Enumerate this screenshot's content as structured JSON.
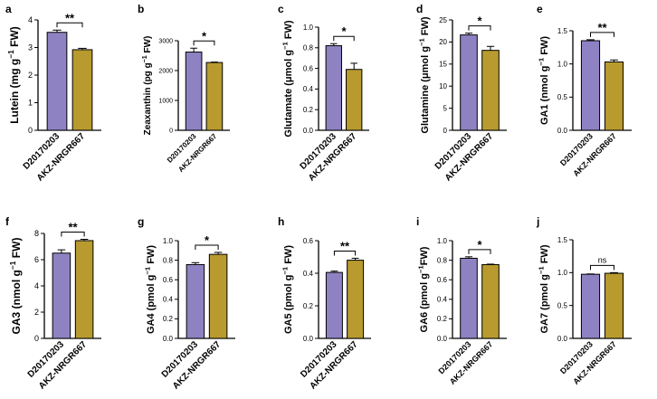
{
  "colors": {
    "series1": "#8e82c3",
    "series2": "#b89a2f",
    "axis": "#000000"
  },
  "chart_data": [
    {
      "panel": "a",
      "type": "bar",
      "categories": [
        "D20170203",
        "AKZ-NRGR667"
      ],
      "values": [
        3.55,
        2.92
      ],
      "errors": [
        0.08,
        0.05
      ],
      "ylabel_parts": [
        "Lutein (mg g",
        "−1",
        " FW)"
      ],
      "ylim": [
        0,
        4
      ],
      "yticks": [
        0,
        1,
        2,
        3,
        4
      ],
      "yticklabels": [
        "0",
        "1",
        "2",
        "3",
        "4"
      ],
      "significance": "**"
    },
    {
      "panel": "b",
      "type": "bar",
      "categories": [
        "D20170203",
        "AKZ-NRGR667"
      ],
      "values": [
        2620,
        2270
      ],
      "errors": [
        130,
        15
      ],
      "ylabel_parts": [
        "Zeaxanthin (pg g",
        "−1",
        " FW)"
      ],
      "ylim": [
        0,
        3000
      ],
      "yticks": [
        0,
        1000,
        2000,
        3000
      ],
      "yticklabels": [
        "0",
        "1000",
        "2000",
        "3000"
      ],
      "significance": "*"
    },
    {
      "panel": "c",
      "type": "bar",
      "categories": [
        "D20170203",
        "AKZ-NRGR667"
      ],
      "values": [
        0.82,
        0.59
      ],
      "errors": [
        0.02,
        0.06
      ],
      "ylabel_parts": [
        "Glutamate (μmol g",
        "−1",
        " FW)"
      ],
      "ylim": [
        0,
        1.0
      ],
      "yticks": [
        0,
        0.2,
        0.4,
        0.6,
        0.8,
        1.0
      ],
      "yticklabels": [
        "0.0",
        "0.2",
        "0.4",
        "0.6",
        "0.8",
        "1.0"
      ],
      "significance": "*"
    },
    {
      "panel": "d",
      "type": "bar",
      "categories": [
        "D20170203",
        "AKZ-NRGR667"
      ],
      "values": [
        21.6,
        18.1
      ],
      "errors": [
        0.4,
        0.9
      ],
      "ylabel_parts": [
        "Glutamine (μmol g",
        "−1",
        " FW)"
      ],
      "ylim": [
        0,
        25
      ],
      "yticks": [
        0,
        5,
        10,
        15,
        20,
        25
      ],
      "yticklabels": [
        "0",
        "5",
        "10",
        "15",
        "20",
        "25"
      ],
      "significance": "*"
    },
    {
      "panel": "e",
      "type": "bar",
      "categories": [
        "D20170203",
        "AKZ-NRGR667"
      ],
      "values": [
        1.35,
        1.03
      ],
      "errors": [
        0.015,
        0.03
      ],
      "ylabel_parts": [
        "GA1 (nmol g",
        "−1",
        " FW)"
      ],
      "ylim": [
        0,
        1.5
      ],
      "yticks": [
        0,
        0.5,
        1.0,
        1.5
      ],
      "yticklabels": [
        "0.0",
        "0.5",
        "1.0",
        "1.5"
      ],
      "significance": "**"
    },
    {
      "panel": "f",
      "type": "bar",
      "categories": [
        "D20170203",
        "AKZ-NRGR667"
      ],
      "values": [
        6.5,
        7.45
      ],
      "errors": [
        0.25,
        0.1
      ],
      "ylabel_parts": [
        "GA3 (nmol g",
        "−1",
        " FW)"
      ],
      "ylim": [
        0,
        8
      ],
      "yticks": [
        0,
        2,
        4,
        6,
        8
      ],
      "yticklabels": [
        "0",
        "2",
        "4",
        "6",
        "8"
      ],
      "significance": "**"
    },
    {
      "panel": "g",
      "type": "bar",
      "categories": [
        "D20170203",
        "AKZ-NRGR667"
      ],
      "values": [
        0.755,
        0.86
      ],
      "errors": [
        0.02,
        0.02
      ],
      "ylabel_parts": [
        "GA4 (pmol g",
        "−1",
        " FW)"
      ],
      "ylim": [
        0,
        1.0
      ],
      "yticks": [
        0,
        0.2,
        0.4,
        0.6,
        0.8,
        1.0
      ],
      "yticklabels": [
        "0.0",
        "0.2",
        "0.4",
        "0.6",
        "0.8",
        "1.0"
      ],
      "significance": "*"
    },
    {
      "panel": "h",
      "type": "bar",
      "categories": [
        "D20170203",
        "AKZ-NRGR667"
      ],
      "values": [
        0.405,
        0.48
      ],
      "errors": [
        0.008,
        0.012
      ],
      "ylabel_parts": [
        "GA5 (pmol g",
        "−1",
        " FW)"
      ],
      "ylim": [
        0,
        0.6
      ],
      "yticks": [
        0,
        0.2,
        0.4,
        0.6
      ],
      "yticklabels": [
        "0.0",
        "0.2",
        "0.4",
        "0.6"
      ],
      "significance": "**"
    },
    {
      "panel": "i",
      "type": "bar",
      "categories": [
        "D20170203",
        "AKZ-NRGR667"
      ],
      "values": [
        0.82,
        0.755
      ],
      "errors": [
        0.015,
        0.005
      ],
      "ylabel_parts": [
        "GA6 (pmol g",
        "−1",
        "FW)"
      ],
      "ylim": [
        0,
        1.0
      ],
      "yticks": [
        0,
        0.2,
        0.4,
        0.6,
        0.8,
        1.0
      ],
      "yticklabels": [
        "0.0",
        "0.2",
        "0.4",
        "0.6",
        "0.8",
        "1.0"
      ],
      "significance": "*"
    },
    {
      "panel": "j",
      "type": "bar",
      "categories": [
        "D20170203",
        "AKZ-NRGR667"
      ],
      "values": [
        0.975,
        0.99
      ],
      "errors": [
        0.005,
        0.01
      ],
      "ylabel_parts": [
        "GA7 (pmol g",
        "−1",
        " FW)"
      ],
      "ylim": [
        0,
        1.5
      ],
      "yticks": [
        0,
        0.5,
        1.0,
        1.5
      ],
      "yticklabels": [
        "0.0",
        "0.5",
        "1.0",
        "1.5"
      ],
      "significance": "ns"
    }
  ]
}
